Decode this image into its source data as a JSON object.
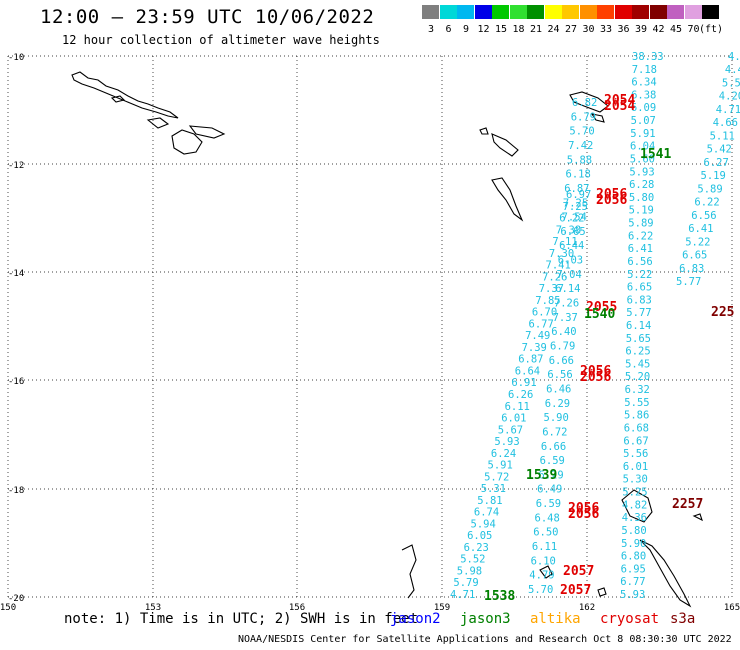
{
  "title": "12:00 – 23:59 UTC 10/06/2022",
  "subtitle": "12 hour collection of altimeter wave heights",
  "colorbar": {
    "labels": [
      "3",
      "6",
      "9",
      "12",
      "15",
      "18",
      "21",
      "24",
      "27",
      "30",
      "33",
      "36",
      "39",
      "42",
      "45",
      "70",
      "(ft)"
    ],
    "colors": [
      "#7f7f7f",
      "#00d8d8",
      "#00b8f0",
      "#0000e8",
      "#00c800",
      "#30e030",
      "#009000",
      "#ffff00",
      "#ffc800",
      "#ff9000",
      "#ff4000",
      "#e00000",
      "#a00000",
      "#800000",
      "#c060c0",
      "#e0a0e0",
      "#000000"
    ]
  },
  "map": {
    "lat_labels": [
      "-10",
      "-12",
      "-14",
      "-16",
      "-18",
      "-20"
    ],
    "lon_labels": [
      "150",
      "153",
      "156",
      "159",
      "162",
      "165"
    ],
    "lat_range": [
      -20,
      -10
    ],
    "lon_range": [
      150,
      165
    ],
    "grid": "dotted"
  },
  "tracks": {
    "track_a": {
      "color": "#20c0e0",
      "values": [
        "4.71",
        "5.79",
        "5.98",
        "5.52",
        "6.23",
        "6.05",
        "5.94",
        "6.74",
        "5.81",
        "5.31",
        "5.72",
        "5.91",
        "6.24",
        "5.93",
        "5.67",
        "6.01",
        "6.11",
        "6.26",
        "6.91",
        "6.64",
        "6.87",
        "7.39",
        "7.49",
        "6.77",
        "6.70",
        "7.85",
        "7.37",
        "7.26",
        "7.41",
        "7.30",
        "7.11",
        "7.38",
        "6.22",
        "7.25",
        "6.97"
      ]
    },
    "track_b": {
      "color": "#20c0e0",
      "values": [
        "5.70",
        "4.79",
        "6.10",
        "6.11",
        "6.50",
        "6.48",
        "6.59",
        "6.49",
        "6.29",
        "6.59",
        "6.66",
        "6.72",
        "5.90",
        "6.29",
        "6.46",
        "6.56",
        "6.66",
        "6.79",
        "6.40",
        "7.37",
        "7.26",
        "6.14",
        "7.04",
        "6.03",
        "6.44",
        "6.65",
        "7.54",
        "7.25",
        "6.87",
        "6.18",
        "5.88",
        "7.42",
        "5.70",
        "6.79",
        "6.82"
      ]
    },
    "track_c": {
      "color": "#20c0e0",
      "values": [
        "5.93",
        "6.77",
        "6.95",
        "6.80",
        "5.90",
        "5.80",
        "4.36",
        "4.82",
        "5.25",
        "5.30",
        "6.01",
        "5.56",
        "6.67",
        "6.68",
        "5.86",
        "5.55",
        "6.32",
        "5.20",
        "5.45",
        "6.25",
        "5.65",
        "6.14",
        "5.77",
        "6.83",
        "6.65",
        "5.22",
        "6.56",
        "6.41",
        "6.22",
        "5.89",
        "5.19",
        "5.80",
        "6.28",
        "5.93",
        "5.60",
        "6.04",
        "5.91",
        "5.07",
        "6.09",
        "6.38",
        "6.34",
        "7.18",
        "38.33"
      ]
    },
    "track_d": {
      "color": "#20c0e0",
      "values": [
        "4.4",
        "4.4",
        "5.5",
        "4.20",
        "4.71",
        "4.66",
        "5.11",
        "5.42",
        "6.27",
        "5.19",
        "5.89",
        "6.22",
        "6.56",
        "6.41",
        "5.22",
        "6.65",
        "6.83",
        "5.77"
      ]
    }
  },
  "passes": [
    {
      "label": "2057",
      "color": "#e00000"
    },
    {
      "label": "2057",
      "color": "#e00000"
    },
    {
      "label": "1538",
      "color": "#008000"
    },
    {
      "label": "2056",
      "color": "#e00000"
    },
    {
      "label": "2056",
      "color": "#e00000"
    },
    {
      "label": "2257",
      "color": "#800000"
    },
    {
      "label": "1539",
      "color": "#008000"
    },
    {
      "label": "2056",
      "color": "#e00000"
    },
    {
      "label": "2056",
      "color": "#e00000"
    },
    {
      "label": "2055",
      "color": "#e00000"
    },
    {
      "label": "1540",
      "color": "#008000"
    },
    {
      "label": "225",
      "color": "#800000"
    },
    {
      "label": "2056",
      "color": "#e00000"
    },
    {
      "label": "2056",
      "color": "#e00000"
    },
    {
      "label": "1541",
      "color": "#008000"
    },
    {
      "label": "2054",
      "color": "#e00000"
    },
    {
      "label": "2054",
      "color": "#e00000"
    }
  ],
  "footer": {
    "note": "note: 1) Time is in UTC; 2) SWH is in feet",
    "sat1": "jason2",
    "sat1_color": "#0000ff",
    "sat2": "jason3",
    "sat2_color": "#008000",
    "sat3": "altika",
    "sat3_color": "#ffa500",
    "sat4": "cryosat",
    "sat4_color": "#e00000",
    "sat5": "s3a",
    "sat5_color": "#800000",
    "credit": "NOAA/NESDIS Center for Satellite Applications and Research   Oct  8 08:30:30 UTC 2022"
  }
}
